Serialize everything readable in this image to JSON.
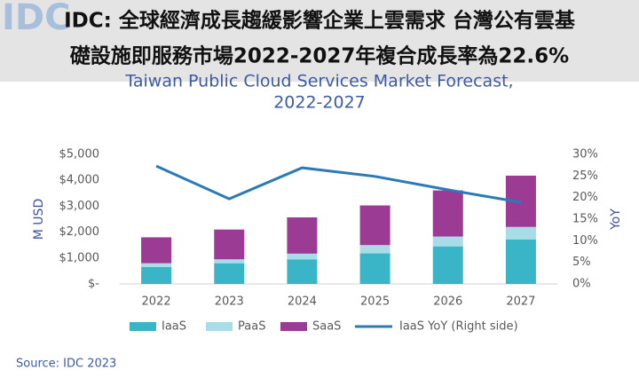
{
  "logo": "IDC",
  "headline": [
    "IDC: 全球經濟成長趨緩影響企業上雲需求 台灣公有雲基",
    "礎設施即服務市場2022-2027年複合成長率為22.6%"
  ],
  "chart_data": {
    "type": "bar",
    "stacked": true,
    "title": [
      "Taiwan Public Cloud Services Market Forecast,",
      "2022-2027"
    ],
    "ylabel": "M USD",
    "y2label": "YoY",
    "categories": [
      "2022",
      "2023",
      "2024",
      "2025",
      "2026",
      "2027"
    ],
    "series": [
      {
        "name": "IaaS",
        "color": "#3ab5c8",
        "values": [
          650,
          800,
          950,
          1180,
          1450,
          1720
        ]
      },
      {
        "name": "PaaS",
        "color": "#a8dde8",
        "values": [
          150,
          150,
          220,
          320,
          380,
          480
        ]
      },
      {
        "name": "SaaS",
        "color": "#9b3b93",
        "values": [
          1000,
          1150,
          1400,
          1530,
          1780,
          1980
        ]
      },
      {
        "name": "IaaS YoY (Right side)",
        "type": "line",
        "axis": "y2",
        "color": "#2a7ab8",
        "values": [
          27.3,
          19.7,
          26.9,
          24.9,
          21.8,
          18.9
        ]
      }
    ],
    "ylim": [
      0,
      5000
    ],
    "yticks": [
      {
        "value": 0,
        "label": "$-"
      },
      {
        "value": 1000,
        "label": "$1,000"
      },
      {
        "value": 2000,
        "label": "$2,000"
      },
      {
        "value": 3000,
        "label": "$3,000"
      },
      {
        "value": 4000,
        "label": "$4,000"
      },
      {
        "value": 5000,
        "label": "$5,000"
      }
    ],
    "y2lim": [
      0,
      30
    ],
    "y2ticks": [
      {
        "value": 0,
        "label": "0%"
      },
      {
        "value": 5,
        "label": "5%"
      },
      {
        "value": 10,
        "label": "10%"
      },
      {
        "value": 15,
        "label": "15%"
      },
      {
        "value": 20,
        "label": "20%"
      },
      {
        "value": 25,
        "label": "25%"
      },
      {
        "value": 30,
        "label": "30%"
      }
    ],
    "grid": false,
    "legend": "bottom",
    "source": "Source: IDC 2023"
  }
}
